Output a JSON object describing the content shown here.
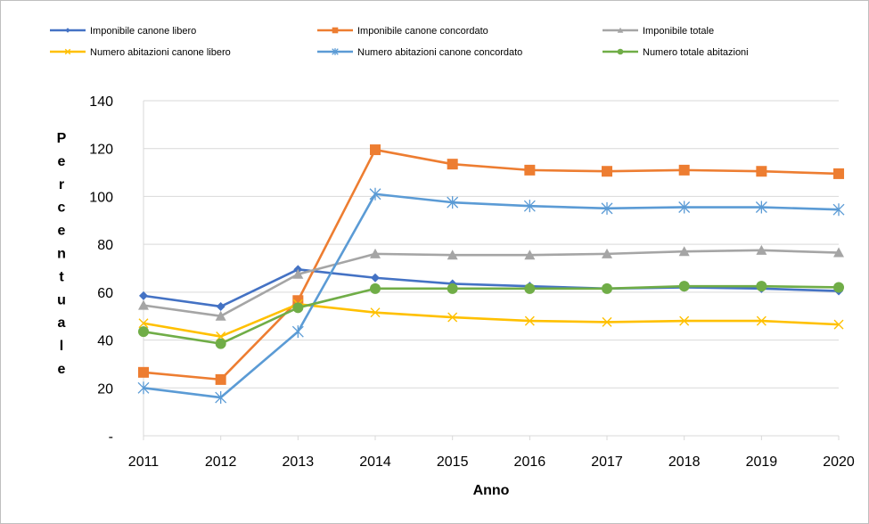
{
  "chart_data": {
    "type": "line",
    "title": "",
    "xlabel": "Anno",
    "ylabel": "Percentuale",
    "x": [
      "2011",
      "2012",
      "2013",
      "2014",
      "2015",
      "2016",
      "2017",
      "2018",
      "2019",
      "2020"
    ],
    "ylim": [
      0,
      140
    ],
    "yticks": [
      0,
      20,
      40,
      60,
      80,
      100,
      120,
      140
    ],
    "ytick_labels": [
      "-",
      "20",
      "40",
      "60",
      "80",
      "100",
      "120",
      "140"
    ],
    "grid": "horizontal",
    "legend_position": "top",
    "series": [
      {
        "name": "Imponibile canone libero",
        "color": "#4472c4",
        "marker": "diamond",
        "values": [
          58.5,
          54,
          69.5,
          66,
          63.5,
          62.5,
          61.5,
          62,
          61.5,
          60.5
        ]
      },
      {
        "name": "Imponibile canone concordato",
        "color": "#ed7d31",
        "marker": "square",
        "values": [
          26.5,
          23.5,
          56.5,
          119.5,
          113.5,
          111,
          110.5,
          111,
          110.5,
          109.5
        ]
      },
      {
        "name": "Imponibile totale",
        "color": "#a5a5a5",
        "marker": "triangle",
        "values": [
          54.5,
          50,
          67.5,
          76,
          75.5,
          75.5,
          76,
          77,
          77.5,
          76.5
        ]
      },
      {
        "name": "Numero abitazioni canone libero",
        "color": "#ffc000",
        "marker": "x",
        "values": [
          47,
          41.5,
          55,
          51.5,
          49.5,
          48,
          47.5,
          48,
          48,
          46.5
        ]
      },
      {
        "name": "Numero abitazioni canone concordato",
        "color": "#5b9bd5",
        "marker": "star",
        "values": [
          20,
          16,
          43.5,
          101,
          97.5,
          96,
          95,
          95.5,
          95.5,
          94.5
        ]
      },
      {
        "name": "Numero totale abitazioni",
        "color": "#70ad47",
        "marker": "circle",
        "values": [
          43.5,
          38.5,
          53.5,
          61.5,
          61.5,
          61.5,
          61.5,
          62.5,
          62.5,
          62
        ]
      }
    ]
  }
}
